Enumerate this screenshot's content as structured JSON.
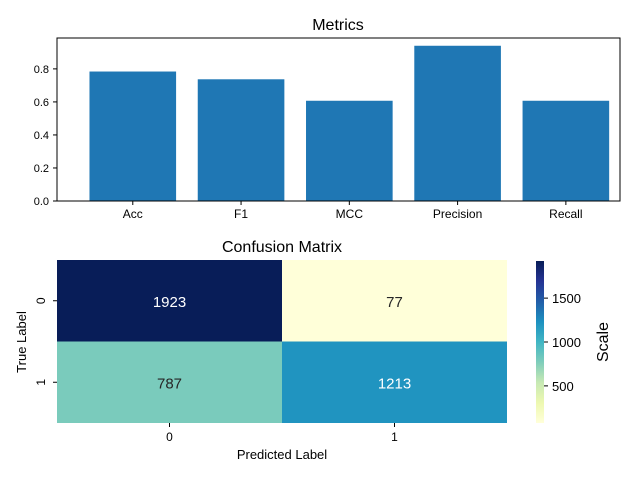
{
  "chart_data": [
    {
      "type": "bar",
      "title": "Metrics",
      "xlabel": "",
      "ylabel": "",
      "categories": [
        "Acc",
        "F1",
        "MCC",
        "Precision",
        "Recall"
      ],
      "values": [
        0.784,
        0.737,
        0.607,
        0.94,
        0.607
      ],
      "ylim": [
        0,
        0.987
      ],
      "yticks": [
        0.0,
        0.2,
        0.4,
        0.6,
        0.8
      ],
      "ytick_labels": [
        "0.0",
        "0.2",
        "0.4",
        "0.6",
        "0.8"
      ],
      "bar_color": "#1f77b4",
      "grid": false
    },
    {
      "type": "heatmap",
      "title": "Confusion Matrix",
      "xlabel": "Predicted Label",
      "ylabel": "True Label",
      "x_categories": [
        "0",
        "1"
      ],
      "y_categories": [
        "0",
        "1"
      ],
      "values": [
        [
          1923,
          77
        ],
        [
          787,
          1213
        ]
      ],
      "colormap": "YlGnBu",
      "colorbar": {
        "label": "Scale",
        "vmin": 77,
        "vmax": 1923,
        "ticks": [
          500,
          1000,
          1500
        ],
        "tick_labels": [
          "500",
          "1000",
          "1500"
        ]
      },
      "grid": false
    }
  ]
}
